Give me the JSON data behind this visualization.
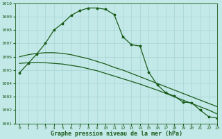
{
  "title": "Graphe pression niveau de la mer (hPa)",
  "xlim": [
    -0.5,
    23
  ],
  "ylim": [
    1001,
    1010
  ],
  "yticks": [
    1001,
    1002,
    1003,
    1004,
    1005,
    1006,
    1007,
    1008,
    1009,
    1010
  ],
  "xticks": [
    0,
    1,
    2,
    3,
    4,
    5,
    6,
    7,
    8,
    9,
    10,
    11,
    12,
    13,
    14,
    15,
    16,
    17,
    18,
    19,
    20,
    21,
    22,
    23
  ],
  "bg_color": "#c2e8e8",
  "grid_color": "#a8d4d4",
  "line_color": "#1a5c1a",
  "line1_x": [
    0,
    1,
    2,
    3,
    4,
    5,
    6,
    7,
    8,
    9,
    10,
    11,
    12,
    13,
    14,
    15,
    16,
    17,
    18,
    19,
    20,
    21,
    22,
    23
  ],
  "line1_y": [
    1004.8,
    1005.5,
    1006.2,
    1007.0,
    1008.0,
    1008.5,
    1009.1,
    1009.45,
    1009.65,
    1009.65,
    1009.55,
    1009.15,
    1007.5,
    1006.9,
    1006.8,
    1004.85,
    1003.9,
    1003.3,
    1003.05,
    1002.6,
    1002.55,
    1002.0,
    1001.5,
    1001.4
  ],
  "line2_x": [
    0,
    1,
    2,
    3,
    4,
    5,
    6,
    7,
    8,
    9,
    10,
    11,
    12,
    13,
    14,
    15,
    16,
    17,
    18,
    19,
    20,
    21,
    22,
    23
  ],
  "line2_y": [
    1006.0,
    1006.15,
    1006.25,
    1006.3,
    1006.3,
    1006.25,
    1006.15,
    1006.0,
    1005.85,
    1005.65,
    1005.45,
    1005.2,
    1005.0,
    1004.75,
    1004.5,
    1004.25,
    1004.0,
    1003.75,
    1003.5,
    1003.25,
    1003.0,
    1002.75,
    1002.5,
    1002.25
  ],
  "line3_x": [
    0,
    1,
    2,
    3,
    4,
    5,
    6,
    7,
    8,
    9,
    10,
    11,
    12,
    13,
    14,
    15,
    16,
    17,
    18,
    19,
    20,
    21,
    22,
    23
  ],
  "line3_y": [
    1005.5,
    1005.55,
    1005.58,
    1005.55,
    1005.5,
    1005.45,
    1005.35,
    1005.25,
    1005.1,
    1004.95,
    1004.75,
    1004.55,
    1004.35,
    1004.15,
    1003.95,
    1003.72,
    1003.5,
    1003.25,
    1003.0,
    1002.75,
    1002.5,
    1002.25,
    1002.0,
    1001.7
  ]
}
